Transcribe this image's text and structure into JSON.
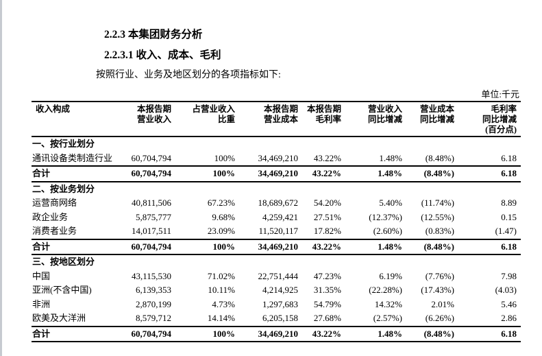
{
  "page": {
    "heading1": "2.2.3 本集团财务分析",
    "heading2": "2.2.3.1 收入、成本、毛利",
    "intro": "按照行业、业务及地区划分的各项指标如下:",
    "unit_label": "单位:千元"
  },
  "table": {
    "columns": [
      "收入构成",
      "本报告期\n营业收入",
      "占营业收入\n比重",
      "本报告期\n营业成本",
      "本报告期\n毛利率",
      "营业收入\n同比增减",
      "营业成本\n同比增减",
      "毛利率\n同比增减\n(百分点)"
    ],
    "sections": [
      {
        "title": "一、按行业划分",
        "rows": [
          [
            "通讯设备类制造行业",
            "60,704,794",
            "100%",
            "34,469,210",
            "43.22%",
            "1.48%",
            "(8.48%)",
            "6.18"
          ]
        ],
        "total": [
          "合计",
          "60,704,794",
          "100%",
          "34,469,210",
          "43.22%",
          "1.48%",
          "(8.48%)",
          "6.18"
        ]
      },
      {
        "title": "二、按业务划分",
        "rows": [
          [
            "运营商网络",
            "40,811,506",
            "67.23%",
            "18,689,672",
            "54.20%",
            "5.40%",
            "(11.74%)",
            "8.89"
          ],
          [
            "政企业务",
            "5,875,777",
            "9.68%",
            "4,259,421",
            "27.51%",
            "(12.37%)",
            "(12.55%)",
            "0.15"
          ],
          [
            "消费者业务",
            "14,017,511",
            "23.09%",
            "11,520,117",
            "17.82%",
            "(2.60%)",
            "(0.83%)",
            "(1.47)"
          ]
        ],
        "total": [
          "合计",
          "60,704,794",
          "100%",
          "34,469,210",
          "43.22%",
          "1.48%",
          "(8.48%)",
          "6.18"
        ]
      },
      {
        "title": "三、按地区划分",
        "rows": [
          [
            "中国",
            "43,115,530",
            "71.02%",
            "22,751,444",
            "47.23%",
            "6.19%",
            "(7.76%)",
            "7.98"
          ],
          [
            "亚洲(不含中国)",
            "6,139,353",
            "10.11%",
            "4,214,925",
            "31.35%",
            "(22.28%)",
            "(17.43%)",
            "(4.03)"
          ],
          [
            "非洲",
            "2,870,199",
            "4.73%",
            "1,297,683",
            "54.79%",
            "14.32%",
            "2.01%",
            "5.46"
          ],
          [
            "欧美及大洋洲",
            "8,579,712",
            "14.14%",
            "6,205,158",
            "27.68%",
            "(2.57%)",
            "(6.26%)",
            "2.86"
          ]
        ],
        "total": [
          "合计",
          "60,704,794",
          "100%",
          "34,469,210",
          "43.22%",
          "1.48%",
          "(8.48%)",
          "6.18"
        ]
      }
    ]
  }
}
